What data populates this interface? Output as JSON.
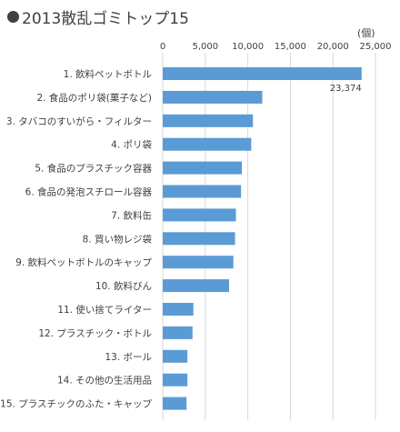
{
  "chart_data": {
    "type": "bar",
    "orientation": "horizontal",
    "title": "2013散乱ゴミトップ15",
    "unit": "(個)",
    "categories": [
      "1. 飲料ペットボトル",
      "2. 食品のポリ袋(菓子など)",
      "3. タバコのすいがら・フィルター",
      "4. ポリ袋",
      "5. 食品のプラスチック容器",
      "6. 食品の発泡スチロール容器",
      "7. 飲料缶",
      "8. 買い物レジ袋",
      "9. 飲料ペットボトルのキャップ",
      "10. 飲料びん",
      "11. 使い捨てライター",
      "12. プラスチック・ボトル",
      "13. ボール",
      "14. その他の生活用品",
      "15. プラスチックのふた・キャップ"
    ],
    "values": [
      23374,
      11700,
      10600,
      10400,
      9300,
      9200,
      8600,
      8500,
      8300,
      7800,
      3600,
      3500,
      2900,
      2900,
      2800
    ],
    "data_labels": [
      {
        "index": 0,
        "text": "23,374"
      }
    ],
    "xlim": [
      0,
      25000
    ],
    "xticks": [
      0,
      5000,
      10000,
      15000,
      20000,
      25000
    ],
    "xtick_labels": [
      "0",
      "5,000",
      "10,000",
      "15,000",
      "20,000",
      "25,000"
    ],
    "grid": true,
    "colors": {
      "bar": "#5b9bd5",
      "grid": "#d9d9d9",
      "text": "#404040"
    }
  }
}
